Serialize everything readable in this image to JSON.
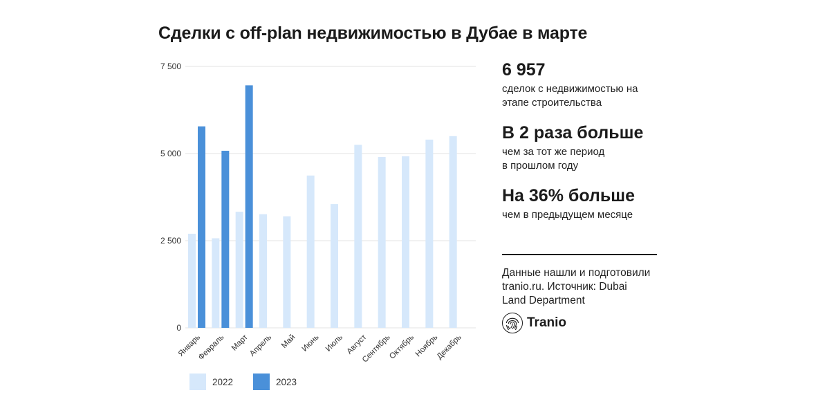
{
  "header": {
    "title": "Сделки с off-plan недвижимостью в Дубае в марте"
  },
  "stats": [
    {
      "value": "6 957",
      "desc": "сделок с недвижимостью на\nэтапе строительства"
    },
    {
      "value": "В 2 раза больше",
      "desc": "чем за тот же период\nв прошлом году"
    },
    {
      "value": "На 36% больше",
      "desc": "чем в предыдущем месяце"
    }
  ],
  "source": "Данные нашли и подготовили\ntranio.ru. Источник: Dubai\nLand Department",
  "brand": {
    "name": "Tranio"
  },
  "colors": {
    "series_2022": "#d6e8fb",
    "series_2023": "#4a90d9",
    "grid": "#e3e3e3"
  },
  "chart_data": {
    "type": "bar",
    "categories": [
      "Январь",
      "Февраль",
      "Март",
      "Апрель",
      "Май",
      "Июнь",
      "Июль",
      "Август",
      "Сентябрь",
      "Октябрь",
      "Ноябрь",
      "Декабрь"
    ],
    "series": [
      {
        "name": "2022",
        "values": [
          2700,
          2570,
          3330,
          3260,
          3200,
          4370,
          3550,
          5250,
          4900,
          4920,
          5400,
          5500
        ]
      },
      {
        "name": "2023",
        "values": [
          5780,
          5080,
          6957,
          null,
          null,
          null,
          null,
          null,
          null,
          null,
          null,
          null
        ]
      }
    ],
    "yticks": [
      0,
      2500,
      5000,
      7500
    ],
    "ytick_labels": [
      "0",
      "2 500",
      "5 000",
      "7 500"
    ],
    "ylim": [
      0,
      7500
    ],
    "grid": true,
    "legend": "bottom"
  }
}
